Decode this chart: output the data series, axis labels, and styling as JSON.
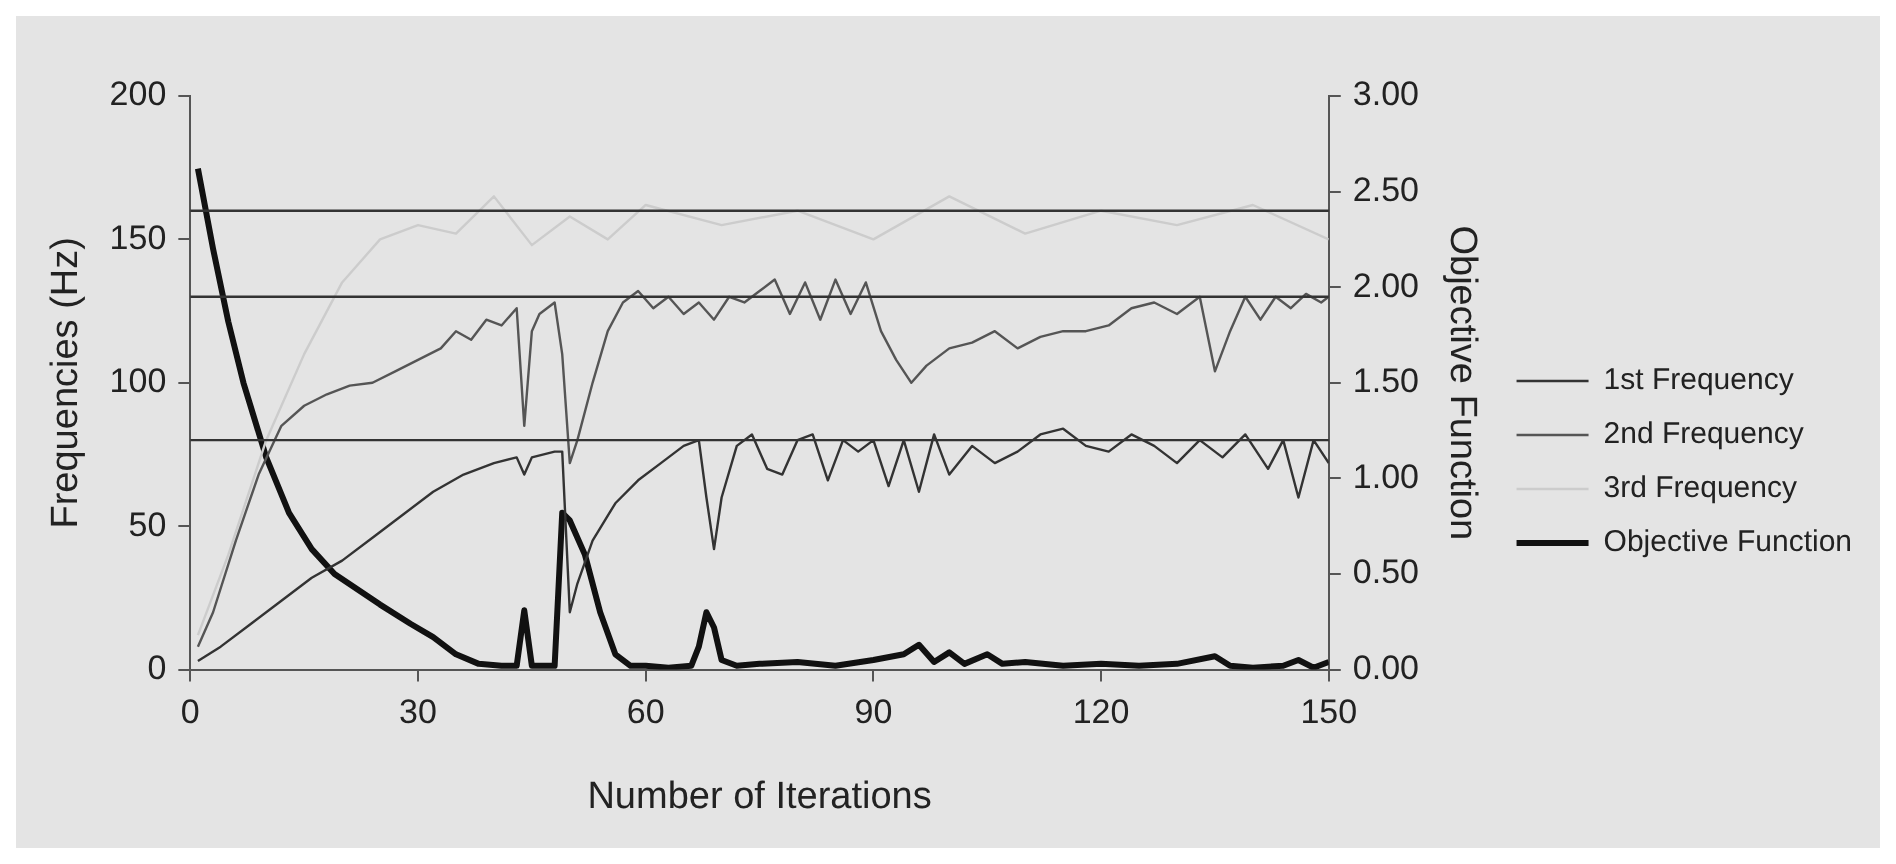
{
  "chart_data": {
    "type": "line",
    "xlabel": "Number of Iterations",
    "ylabel": "Frequencies (Hz)",
    "y2label": "Objective Function",
    "xlim": [
      0,
      150
    ],
    "xticks": [
      0,
      30,
      60,
      90,
      120,
      150
    ],
    "ylim": [
      0,
      200
    ],
    "yticks": [
      0,
      50,
      100,
      150,
      200
    ],
    "y2lim": [
      0,
      3
    ],
    "y2ticks": [
      {
        "value": 0,
        "label": "0.00"
      },
      {
        "value": 0.5,
        "label": "0.50"
      },
      {
        "value": 1,
        "label": "1.00"
      },
      {
        "value": 1.5,
        "label": "1.50"
      },
      {
        "value": 2,
        "label": "2.00"
      },
      {
        "value": 2.5,
        "label": "2.50"
      },
      {
        "value": 3,
        "label": "3.00"
      }
    ],
    "grid": false,
    "legend": "right",
    "marker": "none",
    "line_style": "solid",
    "ref_lines": [
      {
        "axis": "y",
        "value": 160,
        "color": "#333333"
      },
      {
        "axis": "y",
        "value": 130,
        "color": "#333333"
      },
      {
        "axis": "y",
        "value": 80,
        "color": "#333333"
      }
    ],
    "series": [
      {
        "name": "1st Frequency",
        "color": "#333333",
        "x": [
          1,
          4,
          8,
          12,
          16,
          20,
          24,
          28,
          32,
          36,
          40,
          43,
          44,
          45,
          48,
          49,
          50,
          51,
          53,
          56,
          59,
          62,
          65,
          67,
          68,
          69,
          70,
          72,
          74,
          76,
          78,
          80,
          82,
          84,
          86,
          88,
          90,
          92,
          94,
          96,
          98,
          100,
          103,
          106,
          109,
          112,
          115,
          118,
          121,
          124,
          127,
          130,
          133,
          136,
          139,
          142,
          144,
          146,
          148,
          150
        ],
        "values": [
          3,
          8,
          16,
          24,
          32,
          38,
          46,
          54,
          62,
          68,
          72,
          74,
          68,
          74,
          76,
          76,
          20,
          30,
          45,
          58,
          66,
          72,
          78,
          80,
          60,
          42,
          60,
          78,
          82,
          70,
          68,
          80,
          82,
          66,
          80,
          76,
          80,
          64,
          80,
          62,
          82,
          68,
          78,
          72,
          76,
          82,
          84,
          78,
          76,
          82,
          78,
          72,
          80,
          74,
          82,
          70,
          80,
          60,
          80,
          72
        ]
      },
      {
        "name": "2nd Frequency",
        "color": "#555555",
        "x": [
          1,
          3,
          6,
          9,
          12,
          15,
          18,
          21,
          24,
          27,
          30,
          33,
          35,
          37,
          39,
          41,
          43,
          44,
          45,
          46,
          48,
          49,
          50,
          51,
          53,
          55,
          57,
          59,
          61,
          63,
          65,
          67,
          69,
          71,
          73,
          75,
          77,
          79,
          81,
          83,
          85,
          87,
          89,
          91,
          93,
          95,
          97,
          100,
          103,
          106,
          109,
          112,
          115,
          118,
          121,
          124,
          127,
          130,
          133,
          135,
          137,
          139,
          141,
          143,
          145,
          147,
          149,
          150
        ],
        "values": [
          8,
          20,
          45,
          68,
          85,
          92,
          96,
          99,
          100,
          104,
          108,
          112,
          118,
          115,
          122,
          120,
          126,
          85,
          118,
          124,
          128,
          110,
          72,
          80,
          100,
          118,
          128,
          132,
          126,
          130,
          124,
          128,
          122,
          130,
          128,
          132,
          136,
          124,
          135,
          122,
          136,
          124,
          135,
          118,
          108,
          100,
          106,
          112,
          114,
          118,
          112,
          116,
          118,
          118,
          120,
          126,
          128,
          124,
          130,
          104,
          118,
          130,
          122,
          130,
          126,
          131,
          128,
          130
        ]
      },
      {
        "name": "3rd Frequency",
        "color": "#cccccc",
        "x": [
          1,
          5,
          10,
          15,
          20,
          25,
          30,
          35,
          40,
          45,
          50,
          55,
          60,
          70,
          80,
          90,
          100,
          110,
          120,
          130,
          140,
          150
        ],
        "values": [
          12,
          40,
          80,
          110,
          135,
          150,
          155,
          152,
          165,
          148,
          158,
          150,
          162,
          155,
          160,
          150,
          165,
          152,
          160,
          155,
          162,
          150
        ]
      },
      {
        "name": "Objective Function",
        "color": "#111111",
        "axis": "y2",
        "x": [
          1,
          3,
          5,
          7,
          10,
          13,
          16,
          19,
          22,
          25,
          29,
          32,
          35,
          38,
          41,
          43,
          44,
          45,
          46,
          48,
          49,
          50,
          52,
          54,
          56,
          58,
          60,
          63,
          66,
          67,
          68,
          69,
          70,
          72,
          75,
          80,
          85,
          90,
          94,
          96,
          98,
          100,
          102,
          105,
          107,
          110,
          115,
          120,
          125,
          130,
          135,
          137,
          140,
          144,
          146,
          148,
          150
        ],
        "values": [
          2.62,
          2.2,
          1.82,
          1.5,
          1.11,
          0.82,
          0.63,
          0.5,
          0.42,
          0.34,
          0.24,
          0.17,
          0.08,
          0.03,
          0.02,
          0.02,
          0.31,
          0.02,
          0.02,
          0.02,
          0.82,
          0.78,
          0.6,
          0.3,
          0.08,
          0.02,
          0.02,
          0.01,
          0.02,
          0.12,
          0.3,
          0.22,
          0.05,
          0.02,
          0.03,
          0.04,
          0.02,
          0.05,
          0.08,
          0.13,
          0.04,
          0.09,
          0.03,
          0.08,
          0.03,
          0.04,
          0.02,
          0.03,
          0.02,
          0.03,
          0.07,
          0.02,
          0.01,
          0.02,
          0.05,
          0.01,
          0.04
        ]
      }
    ]
  }
}
